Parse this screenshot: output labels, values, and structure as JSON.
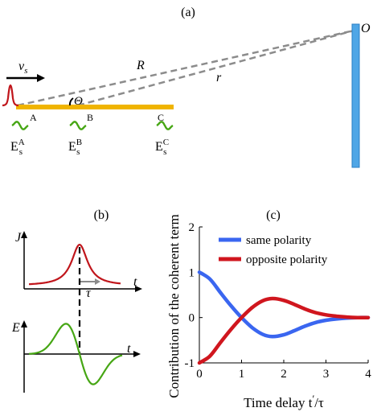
{
  "panel_a": {
    "label": "(a)",
    "velocity": {
      "symbol": "v",
      "sub": "s"
    },
    "dist_R": "R",
    "dist_r": "r",
    "angle": "Θ",
    "observer": "O",
    "points": [
      {
        "name": "A",
        "field": "E",
        "sub": "s",
        "sup": "A"
      },
      {
        "name": "B",
        "field": "E",
        "sub": "s",
        "sup": "B"
      },
      {
        "name": "C",
        "field": "E",
        "sub": "s",
        "sup": "C"
      }
    ],
    "colors": {
      "bar": "#f0b400",
      "pulse": "#c0151b",
      "wave": "#46a614",
      "detector": "#4fa6e6",
      "dash": "#8c8c8c"
    }
  },
  "panel_b": {
    "label": "(b)",
    "top_ylabel": "J",
    "top_xlabel": "t",
    "tau": "τ",
    "bottom_ylabel": "E",
    "bottom_xlabel": "t"
  },
  "panel_c": {
    "label": "(c)",
    "chart_data": {
      "type": "line",
      "xlabel_main": "Time delay t",
      "xlabel_prime": "′",
      "xlabel_den": "/τ",
      "ylabel": "Contribution of the coherent term",
      "xlim": [
        0,
        4
      ],
      "ylim": [
        -1,
        2
      ],
      "xticks": [
        "0",
        "1",
        "2",
        "3",
        "4"
      ],
      "yticks": [
        "-1",
        "0",
        "1",
        "2"
      ],
      "legend_position": "top-right",
      "series": [
        {
          "name": "same polarity",
          "color": "#3a66f0",
          "x": [
            0,
            0.25,
            0.5,
            0.75,
            1.0,
            1.25,
            1.5,
            1.73,
            2.0,
            2.25,
            2.5,
            2.75,
            3.0,
            3.25,
            3.5,
            3.75,
            4.0
          ],
          "y": [
            1.0,
            0.85,
            0.55,
            0.26,
            0.0,
            -0.22,
            -0.37,
            -0.42,
            -0.38,
            -0.29,
            -0.19,
            -0.11,
            -0.06,
            -0.03,
            -0.01,
            0.0,
            0.0
          ]
        },
        {
          "name": "opposite polarity",
          "color": "#d0161e",
          "x": [
            0,
            0.25,
            0.5,
            0.75,
            1.0,
            1.25,
            1.5,
            1.73,
            2.0,
            2.25,
            2.5,
            2.75,
            3.0,
            3.25,
            3.5,
            3.75,
            4.0
          ],
          "y": [
            -1.0,
            -0.85,
            -0.55,
            -0.26,
            0.0,
            0.22,
            0.37,
            0.42,
            0.38,
            0.29,
            0.19,
            0.11,
            0.06,
            0.03,
            0.01,
            0.0,
            0.0
          ]
        }
      ]
    }
  }
}
